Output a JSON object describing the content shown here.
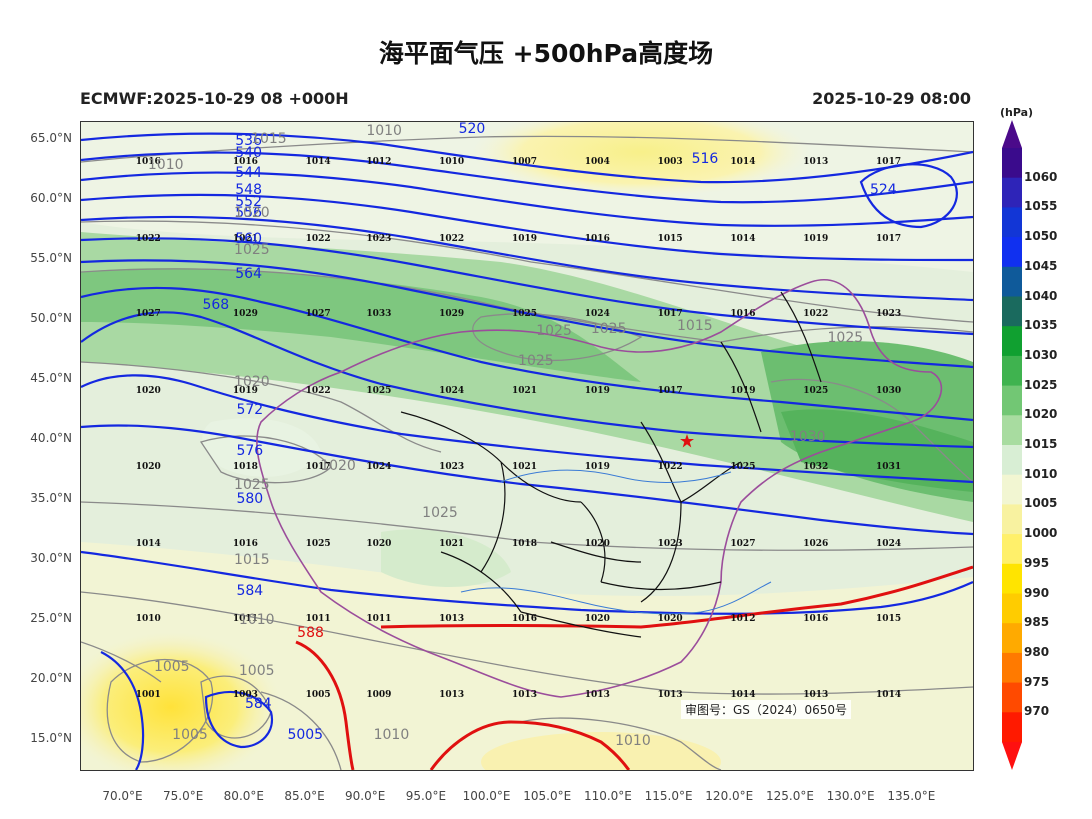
{
  "title": "海平面气压 +500hPa高度场",
  "model_time": "ECMWF:2025-10-29 08 +000H",
  "valid_time": "2025-10-29 08:00",
  "approval": "审图号：GS（2024）0650号",
  "lat_labels": [
    "65.0°N",
    "60.0°N",
    "55.0°N",
    "50.0°N",
    "45.0°N",
    "40.0°N",
    "35.0°N",
    "30.0°N",
    "25.0°N",
    "20.0°N",
    "15.0°N"
  ],
  "lon_labels": [
    "70.0°E",
    "75.0°E",
    "80.0°E",
    "85.0°E",
    "90.0°E",
    "95.0°E",
    "100.0°E",
    "105.0°E",
    "110.0°E",
    "115.0°E",
    "120.0°E",
    "125.0°E",
    "130.0°E",
    "135.0°E"
  ],
  "colorbar": {
    "unit": "(hPa)",
    "labels": [
      "1060",
      "1055",
      "1050",
      "1045",
      "1040",
      "1035",
      "1030",
      "1025",
      "1020",
      "1015",
      "1010",
      "1005",
      "1000",
      "995",
      "990",
      "985",
      "980",
      "975",
      "970"
    ],
    "colors": [
      "#3a0b8c",
      "#2e24b8",
      "#1236d6",
      "#1030f0",
      "#0f5a9a",
      "#1a6a5e",
      "#10a030",
      "#3fb34f",
      "#72c774",
      "#a8dca0",
      "#d8eed4",
      "#f2f6d2",
      "#f8f2a0",
      "#fff06a",
      "#ffe400",
      "#ffcc00",
      "#ffaa00",
      "#ff7a00",
      "#ff4a00",
      "#ff1a00"
    ],
    "top_color": "#4b0a8a",
    "bottom_color": "#ff1010"
  },
  "pressure_numbers": [
    {
      "v": "1016",
      "lon": 72,
      "lat": 63
    },
    {
      "v": "1016",
      "lon": 80,
      "lat": 63
    },
    {
      "v": "1014",
      "lon": 86,
      "lat": 63
    },
    {
      "v": "1012",
      "lon": 91,
      "lat": 63
    },
    {
      "v": "1010",
      "lon": 97,
      "lat": 63
    },
    {
      "v": "1007",
      "lon": 103,
      "lat": 63
    },
    {
      "v": "1004",
      "lon": 109,
      "lat": 63
    },
    {
      "v": "1003",
      "lon": 115,
      "lat": 63
    },
    {
      "v": "1014",
      "lon": 121,
      "lat": 63
    },
    {
      "v": "1013",
      "lon": 127,
      "lat": 63
    },
    {
      "v": "1017",
      "lon": 133,
      "lat": 63
    },
    {
      "v": "1022",
      "lon": 72,
      "lat": 56.6
    },
    {
      "v": "1021",
      "lon": 80,
      "lat": 56.6
    },
    {
      "v": "1022",
      "lon": 86,
      "lat": 56.6
    },
    {
      "v": "1023",
      "lon": 91,
      "lat": 56.6
    },
    {
      "v": "1022",
      "lon": 97,
      "lat": 56.6
    },
    {
      "v": "1019",
      "lon": 103,
      "lat": 56.6
    },
    {
      "v": "1016",
      "lon": 109,
      "lat": 56.6
    },
    {
      "v": "1015",
      "lon": 115,
      "lat": 56.6
    },
    {
      "v": "1014",
      "lon": 121,
      "lat": 56.6
    },
    {
      "v": "1019",
      "lon": 127,
      "lat": 56.6
    },
    {
      "v": "1017",
      "lon": 133,
      "lat": 56.6
    },
    {
      "v": "1027",
      "lon": 72,
      "lat": 50.3
    },
    {
      "v": "1029",
      "lon": 80,
      "lat": 50.3
    },
    {
      "v": "1027",
      "lon": 86,
      "lat": 50.3
    },
    {
      "v": "1033",
      "lon": 91,
      "lat": 50.3
    },
    {
      "v": "1029",
      "lon": 97,
      "lat": 50.3
    },
    {
      "v": "1025",
      "lon": 103,
      "lat": 50.3
    },
    {
      "v": "1024",
      "lon": 109,
      "lat": 50.3
    },
    {
      "v": "1017",
      "lon": 115,
      "lat": 50.3
    },
    {
      "v": "1016",
      "lon": 121,
      "lat": 50.3
    },
    {
      "v": "1022",
      "lon": 127,
      "lat": 50.3
    },
    {
      "v": "1023",
      "lon": 133,
      "lat": 50.3
    },
    {
      "v": "1020",
      "lon": 72,
      "lat": 43.9
    },
    {
      "v": "1019",
      "lon": 80,
      "lat": 43.9
    },
    {
      "v": "1022",
      "lon": 86,
      "lat": 43.9
    },
    {
      "v": "1025",
      "lon": 91,
      "lat": 43.9
    },
    {
      "v": "1024",
      "lon": 97,
      "lat": 43.9
    },
    {
      "v": "1021",
      "lon": 103,
      "lat": 43.9
    },
    {
      "v": "1019",
      "lon": 109,
      "lat": 43.9
    },
    {
      "v": "1017",
      "lon": 115,
      "lat": 43.9
    },
    {
      "v": "1019",
      "lon": 121,
      "lat": 43.9
    },
    {
      "v": "1025",
      "lon": 127,
      "lat": 43.9
    },
    {
      "v": "1030",
      "lon": 133,
      "lat": 43.9
    },
    {
      "v": "1020",
      "lon": 72,
      "lat": 37.6
    },
    {
      "v": "1018",
      "lon": 80,
      "lat": 37.6
    },
    {
      "v": "1017",
      "lon": 86,
      "lat": 37.6
    },
    {
      "v": "1024",
      "lon": 91,
      "lat": 37.6
    },
    {
      "v": "1023",
      "lon": 97,
      "lat": 37.6
    },
    {
      "v": "1021",
      "lon": 103,
      "lat": 37.6
    },
    {
      "v": "1019",
      "lon": 109,
      "lat": 37.6
    },
    {
      "v": "1022",
      "lon": 115,
      "lat": 37.6
    },
    {
      "v": "1025",
      "lon": 121,
      "lat": 37.6
    },
    {
      "v": "1032",
      "lon": 127,
      "lat": 37.6
    },
    {
      "v": "1031",
      "lon": 133,
      "lat": 37.6
    },
    {
      "v": "1014",
      "lon": 72,
      "lat": 31.2
    },
    {
      "v": "1016",
      "lon": 80,
      "lat": 31.2
    },
    {
      "v": "1025",
      "lon": 86,
      "lat": 31.2
    },
    {
      "v": "1020",
      "lon": 91,
      "lat": 31.2
    },
    {
      "v": "1021",
      "lon": 97,
      "lat": 31.2
    },
    {
      "v": "1018",
      "lon": 103,
      "lat": 31.2
    },
    {
      "v": "1020",
      "lon": 109,
      "lat": 31.2
    },
    {
      "v": "1023",
      "lon": 115,
      "lat": 31.2
    },
    {
      "v": "1027",
      "lon": 121,
      "lat": 31.2
    },
    {
      "v": "1026",
      "lon": 127,
      "lat": 31.2
    },
    {
      "v": "1024",
      "lon": 133,
      "lat": 31.2
    },
    {
      "v": "1010",
      "lon": 72,
      "lat": 24.9
    },
    {
      "v": "1011",
      "lon": 80,
      "lat": 24.9
    },
    {
      "v": "1011",
      "lon": 86,
      "lat": 24.9
    },
    {
      "v": "1011",
      "lon": 91,
      "lat": 24.9
    },
    {
      "v": "1013",
      "lon": 97,
      "lat": 24.9
    },
    {
      "v": "1016",
      "lon": 103,
      "lat": 24.9
    },
    {
      "v": "1020",
      "lon": 109,
      "lat": 24.9
    },
    {
      "v": "1020",
      "lon": 115,
      "lat": 24.9
    },
    {
      "v": "1012",
      "lon": 121,
      "lat": 24.9
    },
    {
      "v": "1016",
      "lon": 127,
      "lat": 24.9
    },
    {
      "v": "1015",
      "lon": 133,
      "lat": 24.9
    },
    {
      "v": "1001",
      "lon": 72,
      "lat": 18.6
    },
    {
      "v": "1003",
      "lon": 80,
      "lat": 18.6
    },
    {
      "v": "1005",
      "lon": 86,
      "lat": 18.6
    },
    {
      "v": "1009",
      "lon": 91,
      "lat": 18.6
    },
    {
      "v": "1013",
      "lon": 97,
      "lat": 18.6
    },
    {
      "v": "1013",
      "lon": 103,
      "lat": 18.6
    },
    {
      "v": "1013",
      "lon": 109,
      "lat": 18.6
    },
    {
      "v": "1013",
      "lon": 115,
      "lat": 18.6
    },
    {
      "v": "1014",
      "lon": 121,
      "lat": 18.6
    },
    {
      "v": "1013",
      "lon": 127,
      "lat": 18.6
    },
    {
      "v": "1014",
      "lon": 133,
      "lat": 18.6
    }
  ],
  "height_labels": [
    {
      "v": "536",
      "lon": 80.2,
      "lat": 65
    },
    {
      "v": "540",
      "lon": 80.2,
      "lat": 64
    },
    {
      "v": "544",
      "lon": 80.2,
      "lat": 62.3
    },
    {
      "v": "548",
      "lon": 80.2,
      "lat": 60.9
    },
    {
      "v": "552",
      "lon": 80.2,
      "lat": 59.9
    },
    {
      "v": "556",
      "lon": 80.2,
      "lat": 59.0
    },
    {
      "v": "560",
      "lon": 80.2,
      "lat": 56.8
    },
    {
      "v": "564",
      "lon": 80.2,
      "lat": 53.9
    },
    {
      "v": "568",
      "lon": 77.5,
      "lat": 51.3
    },
    {
      "v": "572",
      "lon": 80.3,
      "lat": 42.6
    },
    {
      "v": "576",
      "lon": 80.3,
      "lat": 39.2
    },
    {
      "v": "580",
      "lon": 80.3,
      "lat": 35.2
    },
    {
      "v": "584",
      "lon": 80.3,
      "lat": 27.5
    },
    {
      "v": "584",
      "lon": 81,
      "lat": 18.1
    },
    {
      "v": "520",
      "lon": 98.6,
      "lat": 66
    },
    {
      "v": "516",
      "lon": 117.8,
      "lat": 63.5
    },
    {
      "v": "524",
      "lon": 132.5,
      "lat": 60.9
    },
    {
      "v": "5005",
      "lon": 84.5,
      "lat": 15.5
    }
  ],
  "isobar_labels": [
    {
      "v": "1010",
      "lon": 91,
      "lat": 65.8
    },
    {
      "v": "1015",
      "lon": 81.5,
      "lat": 65.2
    },
    {
      "v": "1010",
      "lon": 73,
      "lat": 63
    },
    {
      "v": "1020",
      "lon": 80.1,
      "lat": 59.0
    },
    {
      "v": "1025",
      "lon": 80.1,
      "lat": 55.9
    },
    {
      "v": "1025",
      "lon": 105,
      "lat": 49.2
    },
    {
      "v": "1025",
      "lon": 109.5,
      "lat": 49.3
    },
    {
      "v": "1025",
      "lon": 103.5,
      "lat": 46.7
    },
    {
      "v": "1015",
      "lon": 116.6,
      "lat": 49.6
    },
    {
      "v": "1025",
      "lon": 129,
      "lat": 48.6
    },
    {
      "v": "1020",
      "lon": 80.1,
      "lat": 44.9
    },
    {
      "v": "1020",
      "lon": 87.2,
      "lat": 37.9
    },
    {
      "v": "1025",
      "lon": 80.1,
      "lat": 36.3
    },
    {
      "v": "1025",
      "lon": 95.6,
      "lat": 34.0
    },
    {
      "v": "1030",
      "lon": 125.9,
      "lat": 40.3
    },
    {
      "v": "1015",
      "lon": 80.1,
      "lat": 30.1
    },
    {
      "v": "1010",
      "lon": 80.5,
      "lat": 25.1
    },
    {
      "v": "1005",
      "lon": 73.5,
      "lat": 21.2
    },
    {
      "v": "1005",
      "lon": 80.5,
      "lat": 20.8
    },
    {
      "v": "1005",
      "lon": 75,
      "lat": 15.5
    },
    {
      "v": "1010",
      "lon": 91.6,
      "lat": 15.5
    },
    {
      "v": "1010",
      "lon": 111.5,
      "lat": 15.0
    },
    {
      "v": "588",
      "lon": 85.3,
      "lat": 24.0
    }
  ],
  "capital_marker": {
    "lon": 116.4,
    "lat": 39.9
  }
}
